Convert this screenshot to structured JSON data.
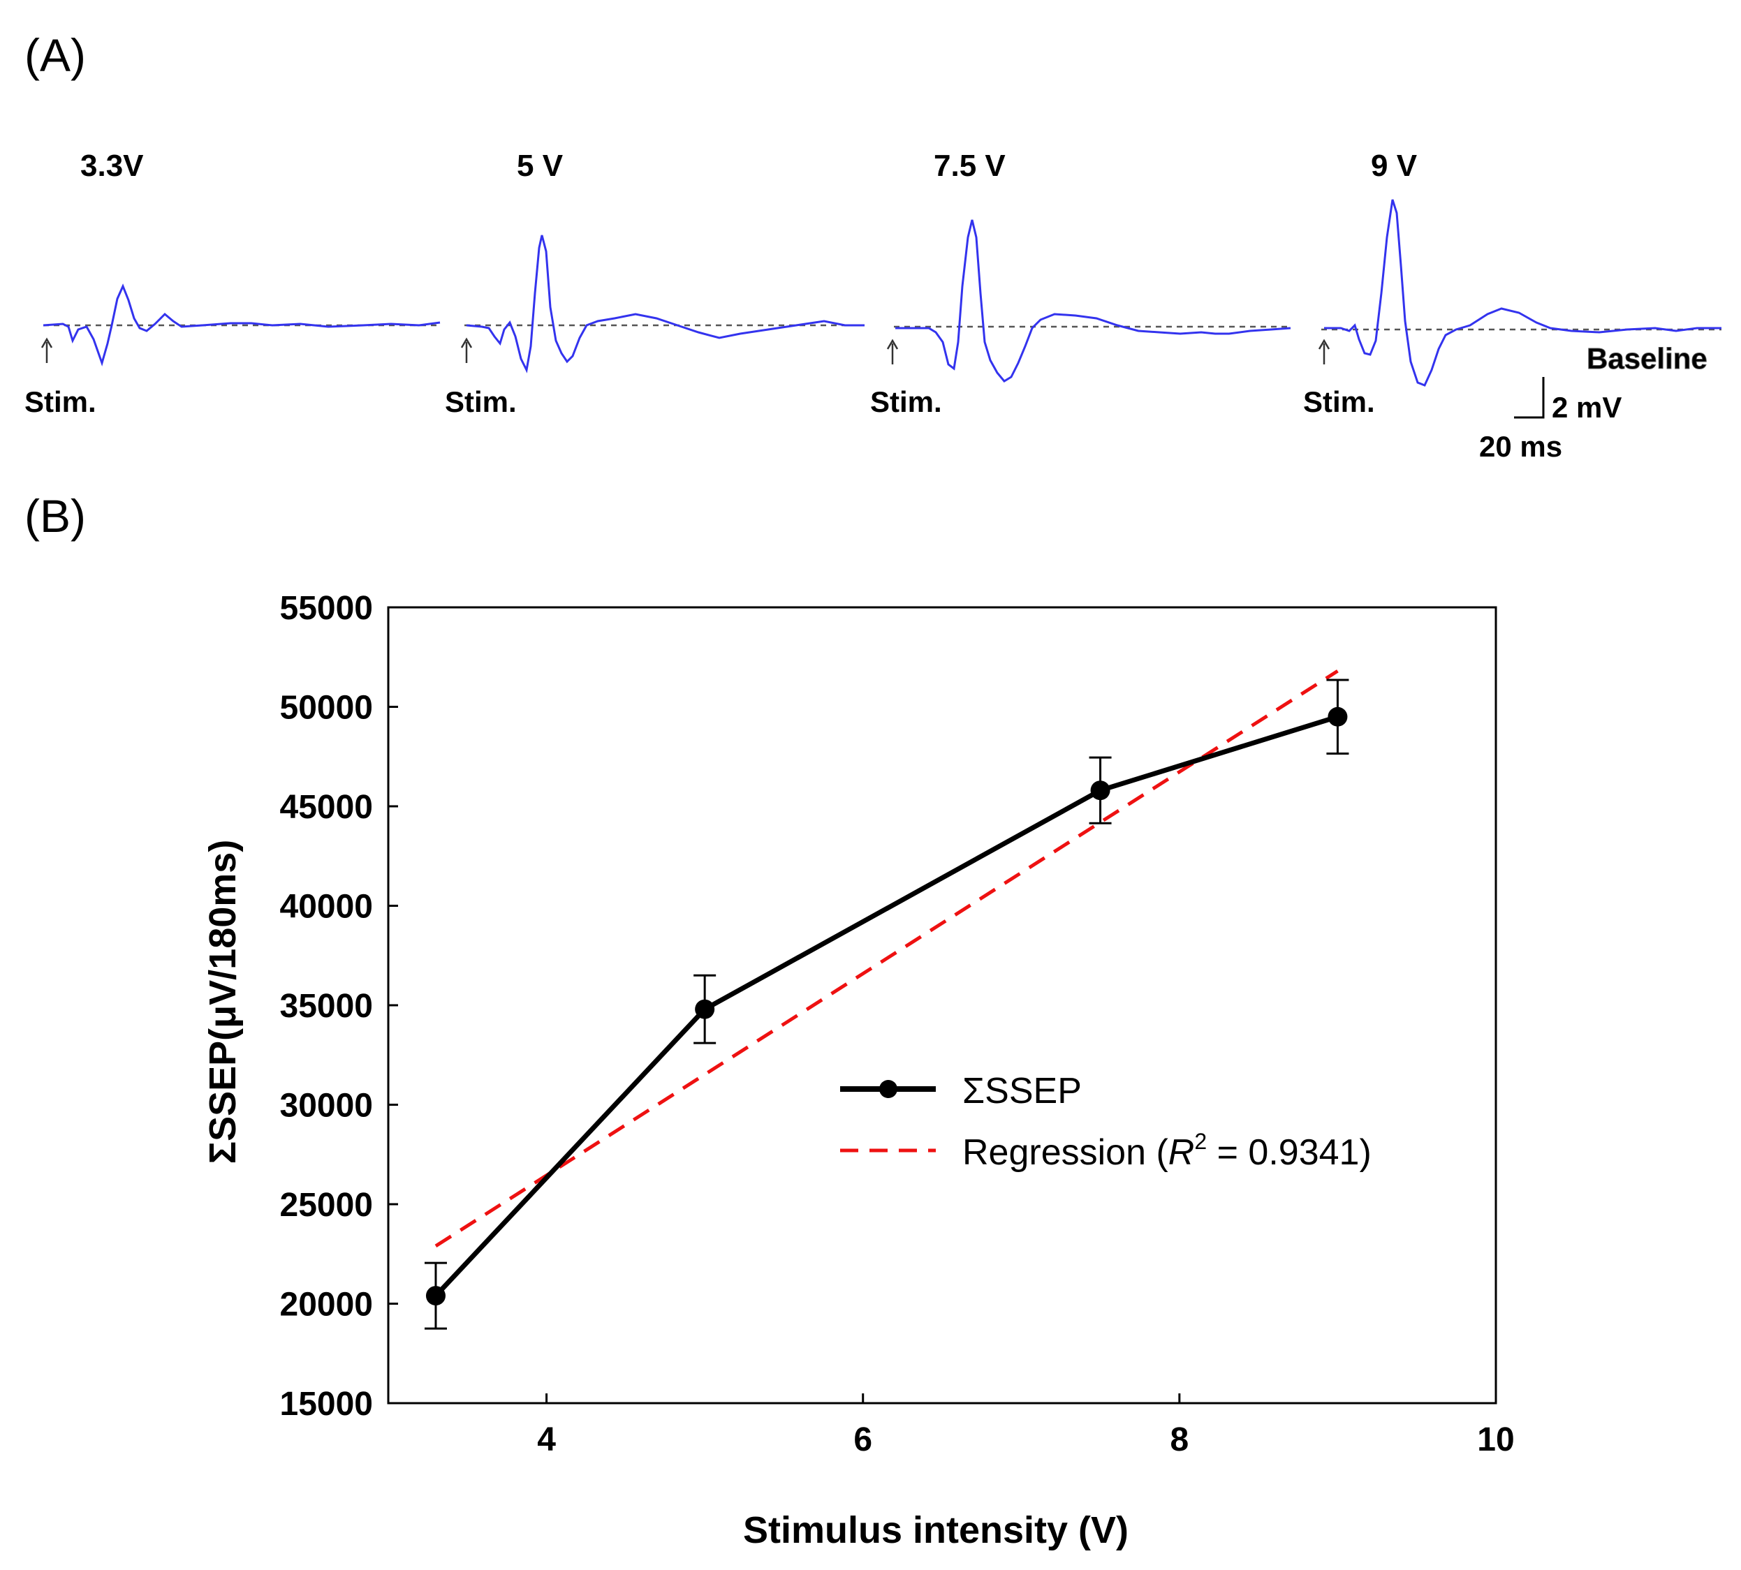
{
  "panel_a": {
    "label": "(A)",
    "traces": [
      {
        "label": "3.3V",
        "stim_label": "Stim."
      },
      {
        "label": "5 V",
        "stim_label": "Stim."
      },
      {
        "label": "7.5 V",
        "stim_label": "Stim."
      },
      {
        "label": "9 V",
        "stim_label": "Stim."
      }
    ],
    "baseline_label": "Baseline",
    "scale_bar": {
      "voltage_label": "2 mV",
      "time_label": "20 ms"
    },
    "trace_color": "#3333ee",
    "baseline_color": "#555555"
  },
  "panel_b": {
    "label": "(B)"
  },
  "chart_data": {
    "type": "line",
    "title": "",
    "xlabel": "Stimulus intensity (V)",
    "ylabel": "ΣSSEP(μV/180ms)",
    "xlim": [
      3,
      10
    ],
    "ylim": [
      15000,
      55000
    ],
    "xticks": [
      4,
      6,
      8,
      10
    ],
    "yticks": [
      15000,
      20000,
      25000,
      30000,
      35000,
      40000,
      45000,
      50000,
      55000
    ],
    "grid": false,
    "legend_position": "center-right",
    "series": [
      {
        "name": "ΣSSEP",
        "style": "solid-markers",
        "color": "#000000",
        "x": [
          3.3,
          5,
          7.5,
          9
        ],
        "y": [
          20400,
          34800,
          45800,
          49500
        ],
        "error": [
          1650,
          1700,
          1650,
          1850
        ]
      },
      {
        "name": "Regression",
        "style": "dashed",
        "color": "#ee1111",
        "r2_label": "R",
        "r2_exponent": "2",
        "r2_value": "0.9341",
        "x": [
          3.3,
          9
        ],
        "y": [
          22900,
          51800
        ]
      }
    ]
  }
}
